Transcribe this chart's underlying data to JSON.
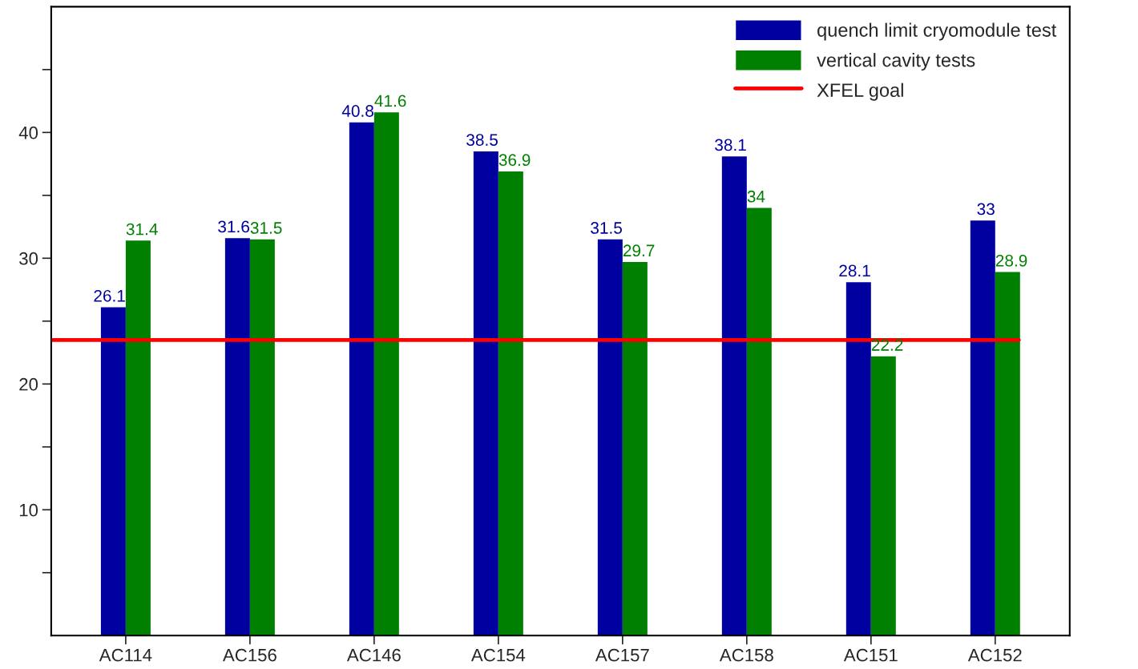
{
  "chart_data": {
    "type": "bar",
    "categories": [
      "AC114",
      "AC156",
      "AC146",
      "AC154",
      "AC157",
      "AC158",
      "AC151",
      "AC152"
    ],
    "series": [
      {
        "name": "quench limit cryomodule test",
        "color": "#0000a0",
        "values": [
          26.1,
          31.6,
          40.8,
          38.5,
          31.5,
          38.1,
          28.1,
          33
        ]
      },
      {
        "name": "vertical cavity tests",
        "color": "#008000",
        "values": [
          31.4,
          31.5,
          41.6,
          36.9,
          29.7,
          34,
          22.2,
          28.9
        ]
      }
    ],
    "ref_lines": [
      {
        "axis": "y",
        "value": 23.5,
        "label": "XFEL goal",
        "color": "#ff0000"
      }
    ],
    "ylim": [
      0,
      50
    ],
    "yticks": [
      {
        "value": 5,
        "label": null
      },
      10,
      {
        "value": 15,
        "label": null
      },
      20,
      {
        "value": 25,
        "label": null
      },
      30,
      {
        "value": 35,
        "label": null
      },
      40,
      {
        "value": 45,
        "label": null
      }
    ],
    "data_labels": true,
    "grid": false,
    "legend": "top right"
  }
}
